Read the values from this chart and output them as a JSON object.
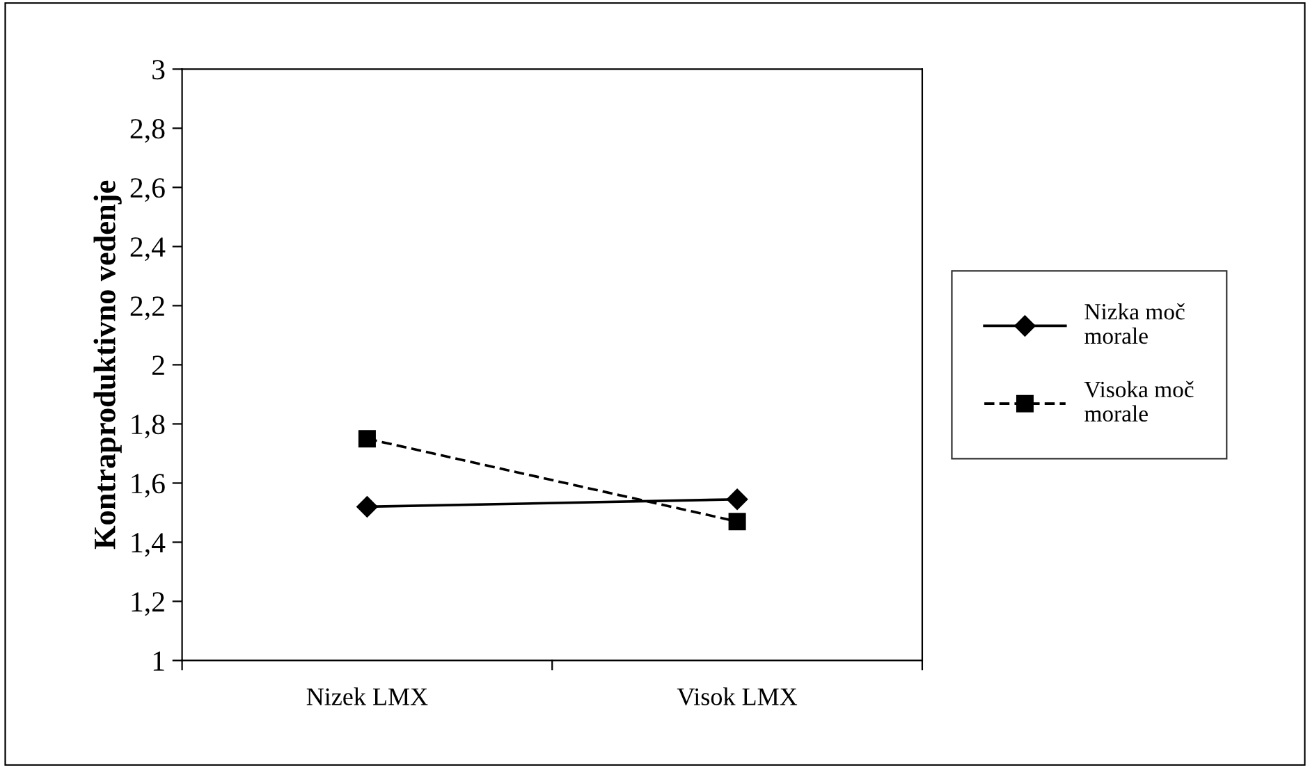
{
  "chart_data": {
    "type": "line",
    "ylabel": "Kontraproduktivno vedenje",
    "categories": [
      "Nizek LMX",
      "Visok LMX"
    ],
    "series": [
      {
        "name": "Nizka moč\nmorale",
        "color": "#000000",
        "values": [
          1.52,
          1.545
        ],
        "marker": "diamond",
        "line_style": "solid"
      },
      {
        "name": "Visoka moč\nmorale",
        "color": "#000000",
        "values": [
          1.75,
          1.47
        ],
        "marker": "square",
        "line_style": "dashed"
      }
    ],
    "ylim": [
      1,
      3
    ],
    "yticks": [
      {
        "value": 1,
        "label": "1"
      },
      {
        "value": 1.2,
        "label": "1,2"
      },
      {
        "value": 1.4,
        "label": "1,4"
      },
      {
        "value": 1.6,
        "label": "1,6"
      },
      {
        "value": 1.8,
        "label": "1,8"
      },
      {
        "value": 2,
        "label": "2"
      },
      {
        "value": 2.2,
        "label": "2,2"
      },
      {
        "value": 2.4,
        "label": "2,4"
      },
      {
        "value": 2.6,
        "label": "2,6"
      },
      {
        "value": 2.8,
        "label": "2,8"
      },
      {
        "value": 3,
        "label": "3"
      }
    ],
    "grid": false,
    "legend": "right"
  }
}
